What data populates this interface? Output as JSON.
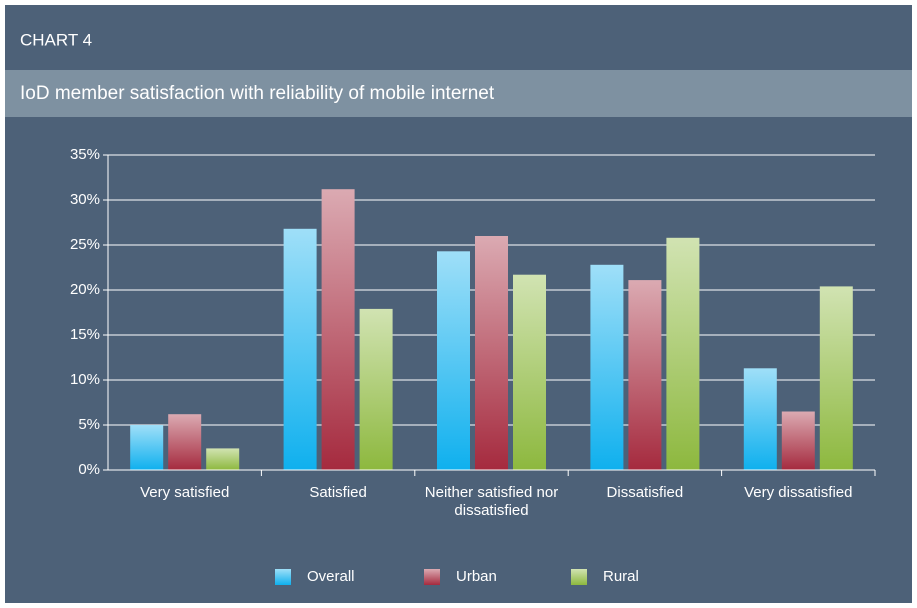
{
  "header": "CHART 4",
  "chart_data": {
    "type": "bar",
    "title": "IoD member satisfaction with reliability of mobile internet",
    "categories": [
      "Very satisfied",
      "Satisfied",
      "Neither satisfied nor dissatisfied",
      "Dissatisfied",
      "Very dissatisfied"
    ],
    "series": [
      {
        "name": "Overall",
        "color": "#0fb0ee",
        "values": [
          5,
          26.8,
          24.3,
          22.8,
          11.3
        ]
      },
      {
        "name": "Urban",
        "color": "#a52a3e",
        "values": [
          6.2,
          31.2,
          26,
          21.1,
          6.5
        ]
      },
      {
        "name": "Rural",
        "color": "#8db83e",
        "values": [
          2.4,
          17.9,
          21.7,
          25.8,
          20.4
        ]
      }
    ],
    "ylim": [
      0,
      35
    ],
    "yticks": [
      {
        "value": 0,
        "label": "0%"
      },
      {
        "value": 5,
        "label": "5%"
      },
      {
        "value": 10,
        "label": "10%"
      },
      {
        "value": 15,
        "label": "15%"
      },
      {
        "value": 20,
        "label": "20%"
      },
      {
        "value": 25,
        "label": "25%"
      },
      {
        "value": 30,
        "label": "30%"
      },
      {
        "value": 35,
        "label": "35%"
      }
    ],
    "grid": true,
    "legend": "bottom"
  }
}
